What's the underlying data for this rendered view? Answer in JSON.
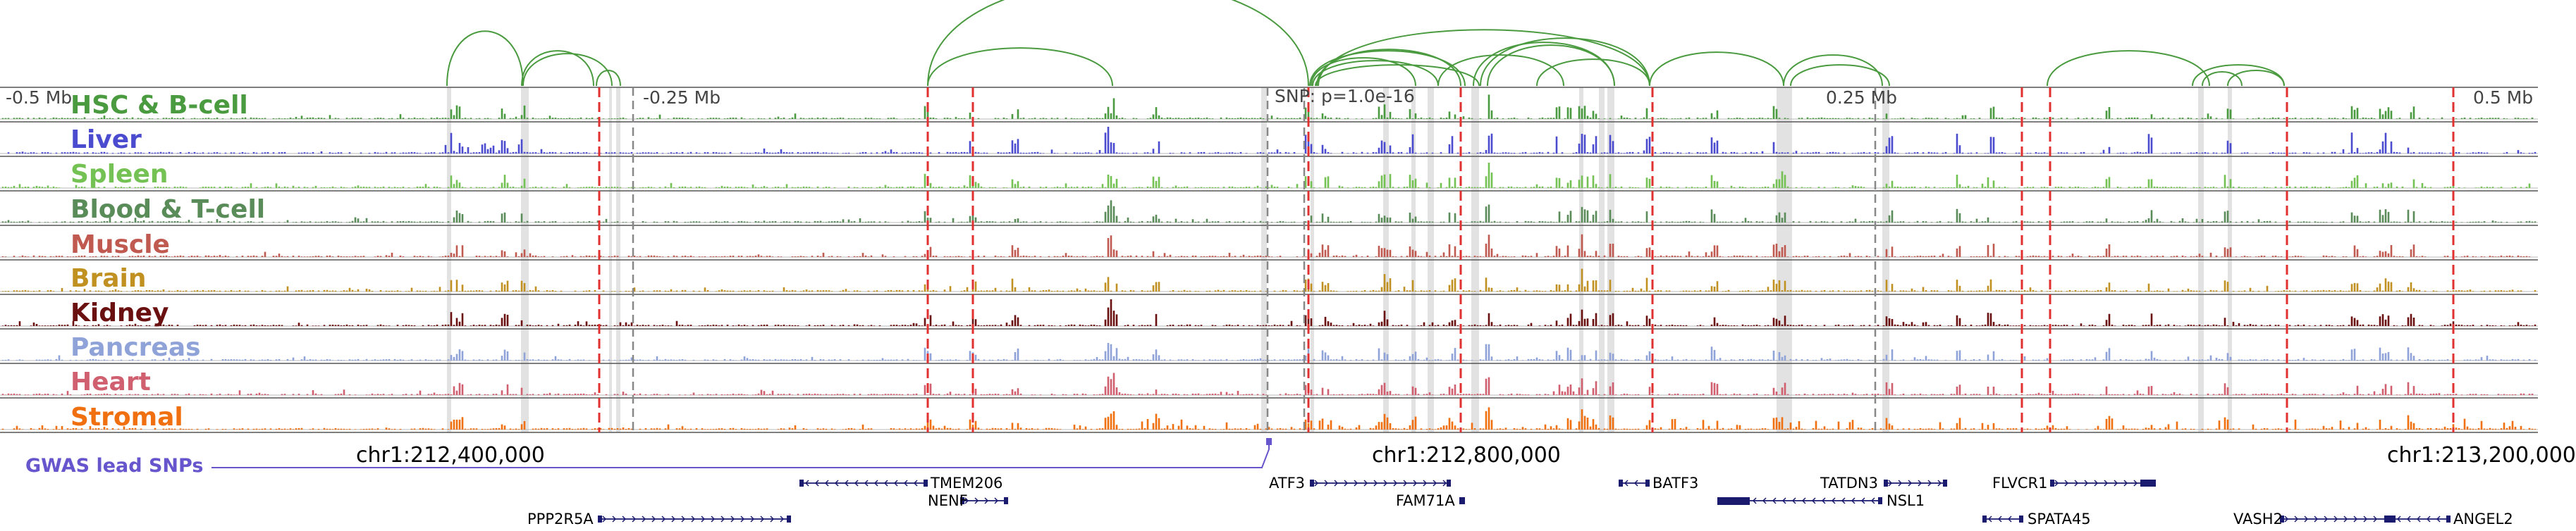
{
  "scale": {
    "start": "-0.5 Mb",
    "quarter_left": "-0.25 Mb",
    "snp": "SNP: p=1.0e-16",
    "quarter_right": "0.25 Mb",
    "end": "0.5 Mb"
  },
  "tracks": [
    {
      "label": "HSC & B-cell",
      "color": "#4a9a3f"
    },
    {
      "label": "Liver",
      "color": "#4b4bd0"
    },
    {
      "label": "Spleen",
      "color": "#74c254"
    },
    {
      "label": "Blood & T-cell",
      "color": "#5a8c5a"
    },
    {
      "label": "Muscle",
      "color": "#c05a50"
    },
    {
      "label": "Brain",
      "color": "#c09020"
    },
    {
      "label": "Kidney",
      "color": "#6a1010"
    },
    {
      "label": "Pancreas",
      "color": "#8fa3d8"
    },
    {
      "label": "Heart",
      "color": "#d06070"
    },
    {
      "label": "Stromal",
      "color": "#f07010"
    }
  ],
  "coordinates": [
    "chr1:212,400,000",
    "chr1:212,800,000",
    "chr1:213,200,000"
  ],
  "gwas": {
    "label": "GWAS lead SNPs",
    "color": "#6655cc"
  },
  "genes": [
    "TMEM206",
    "NENF",
    "PPP2R5A",
    "ATF3",
    "FAM71A",
    "BATF3",
    "TATDN3",
    "NSL1",
    "FLVCR1",
    "SPATA45",
    "VASH2",
    "ANGEL2"
  ],
  "colors": {
    "loop": "#4a9a3f",
    "red_marker": "#e03030",
    "highlight": "#d8d8d8",
    "gene": "#1a1a6e"
  }
}
